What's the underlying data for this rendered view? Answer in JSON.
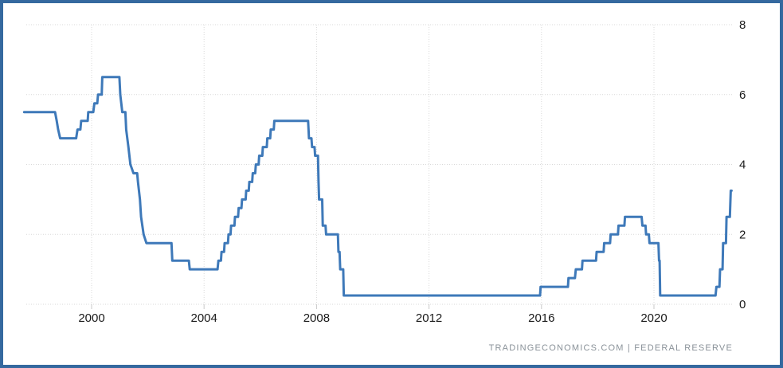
{
  "chart": {
    "attribution": "TRADINGECONOMICS.COM  |  FEDERAL RESERVE",
    "colors": {
      "line": "#3e79b9",
      "grid": "#d9d9d9",
      "tick": "#c9c9c9",
      "frame_border": "#35699f",
      "axis_text": "#1a1a1a",
      "attribution_text": "#8a9299",
      "background": "#ffffff"
    }
  },
  "chart_data": {
    "type": "line",
    "title": "",
    "xlabel": "",
    "ylabel": "",
    "legend": null,
    "grid": true,
    "y_axis_side": "right",
    "x_ticks": [
      2000,
      2004,
      2008,
      2012,
      2016,
      2020
    ],
    "y_ticks": [
      0,
      2,
      4,
      6,
      8
    ],
    "x_range": [
      1997.6,
      2022.9
    ],
    "y_range": [
      0,
      8
    ],
    "series": [
      {
        "points": [
          [
            1997.6,
            5.5
          ],
          [
            1998.7,
            5.5
          ],
          [
            1998.76,
            5.25
          ],
          [
            1998.81,
            5.0
          ],
          [
            1998.88,
            4.75
          ],
          [
            1999.45,
            4.75
          ],
          [
            1999.5,
            5.0
          ],
          [
            1999.6,
            5.0
          ],
          [
            1999.63,
            5.25
          ],
          [
            1999.86,
            5.25
          ],
          [
            1999.88,
            5.5
          ],
          [
            2000.06,
            5.5
          ],
          [
            2000.1,
            5.75
          ],
          [
            2000.2,
            5.75
          ],
          [
            2000.23,
            6.0
          ],
          [
            2000.36,
            6.0
          ],
          [
            2000.38,
            6.5
          ],
          [
            2000.99,
            6.5
          ],
          [
            2001.02,
            6.0
          ],
          [
            2001.09,
            5.5
          ],
          [
            2001.2,
            5.5
          ],
          [
            2001.23,
            5.0
          ],
          [
            2001.31,
            4.5
          ],
          [
            2001.38,
            4.0
          ],
          [
            2001.49,
            3.75
          ],
          [
            2001.62,
            3.75
          ],
          [
            2001.65,
            3.5
          ],
          [
            2001.72,
            3.0
          ],
          [
            2001.76,
            2.5
          ],
          [
            2001.85,
            2.0
          ],
          [
            2001.95,
            1.75
          ],
          [
            2002.84,
            1.75
          ],
          [
            2002.87,
            1.25
          ],
          [
            2003.46,
            1.25
          ],
          [
            2003.49,
            1.0
          ],
          [
            2004.48,
            1.0
          ],
          [
            2004.51,
            1.25
          ],
          [
            2004.6,
            1.25
          ],
          [
            2004.62,
            1.5
          ],
          [
            2004.71,
            1.5
          ],
          [
            2004.73,
            1.75
          ],
          [
            2004.85,
            1.75
          ],
          [
            2004.87,
            2.0
          ],
          [
            2004.94,
            2.0
          ],
          [
            2004.96,
            2.25
          ],
          [
            2005.08,
            2.25
          ],
          [
            2005.1,
            2.5
          ],
          [
            2005.21,
            2.5
          ],
          [
            2005.23,
            2.75
          ],
          [
            2005.33,
            2.75
          ],
          [
            2005.35,
            3.0
          ],
          [
            2005.48,
            3.0
          ],
          [
            2005.5,
            3.25
          ],
          [
            2005.59,
            3.25
          ],
          [
            2005.61,
            3.5
          ],
          [
            2005.71,
            3.5
          ],
          [
            2005.73,
            3.75
          ],
          [
            2005.82,
            3.75
          ],
          [
            2005.84,
            4.0
          ],
          [
            2005.94,
            4.0
          ],
          [
            2005.96,
            4.25
          ],
          [
            2006.07,
            4.25
          ],
          [
            2006.09,
            4.5
          ],
          [
            2006.23,
            4.5
          ],
          [
            2006.25,
            4.75
          ],
          [
            2006.35,
            4.75
          ],
          [
            2006.37,
            5.0
          ],
          [
            2006.48,
            5.0
          ],
          [
            2006.5,
            5.25
          ],
          [
            2007.7,
            5.25
          ],
          [
            2007.73,
            4.75
          ],
          [
            2007.82,
            4.75
          ],
          [
            2007.84,
            4.5
          ],
          [
            2007.93,
            4.5
          ],
          [
            2007.95,
            4.25
          ],
          [
            2008.05,
            4.25
          ],
          [
            2008.07,
            3.5
          ],
          [
            2008.09,
            3.0
          ],
          [
            2008.2,
            3.0
          ],
          [
            2008.22,
            2.25
          ],
          [
            2008.32,
            2.25
          ],
          [
            2008.34,
            2.0
          ],
          [
            2008.76,
            2.0
          ],
          [
            2008.78,
            1.5
          ],
          [
            2008.82,
            1.5
          ],
          [
            2008.84,
            1.0
          ],
          [
            2008.95,
            1.0
          ],
          [
            2008.97,
            0.25
          ],
          [
            2015.95,
            0.25
          ],
          [
            2015.97,
            0.5
          ],
          [
            2016.94,
            0.5
          ],
          [
            2016.96,
            0.75
          ],
          [
            2017.19,
            0.75
          ],
          [
            2017.22,
            1.0
          ],
          [
            2017.44,
            1.0
          ],
          [
            2017.46,
            1.25
          ],
          [
            2017.94,
            1.25
          ],
          [
            2017.96,
            1.5
          ],
          [
            2018.21,
            1.5
          ],
          [
            2018.23,
            1.75
          ],
          [
            2018.44,
            1.75
          ],
          [
            2018.46,
            2.0
          ],
          [
            2018.72,
            2.0
          ],
          [
            2018.74,
            2.25
          ],
          [
            2018.95,
            2.25
          ],
          [
            2018.97,
            2.5
          ],
          [
            2019.56,
            2.5
          ],
          [
            2019.59,
            2.25
          ],
          [
            2019.7,
            2.25
          ],
          [
            2019.72,
            2.0
          ],
          [
            2019.82,
            2.0
          ],
          [
            2019.84,
            1.75
          ],
          [
            2020.16,
            1.75
          ],
          [
            2020.18,
            1.25
          ],
          [
            2020.2,
            1.25
          ],
          [
            2020.22,
            0.25
          ],
          [
            2022.19,
            0.25
          ],
          [
            2022.22,
            0.5
          ],
          [
            2022.33,
            0.5
          ],
          [
            2022.35,
            1.0
          ],
          [
            2022.44,
            1.0
          ],
          [
            2022.46,
            1.75
          ],
          [
            2022.56,
            1.75
          ],
          [
            2022.58,
            2.5
          ],
          [
            2022.7,
            2.5
          ],
          [
            2022.73,
            3.25
          ],
          [
            2022.76,
            3.25
          ]
        ]
      }
    ]
  }
}
